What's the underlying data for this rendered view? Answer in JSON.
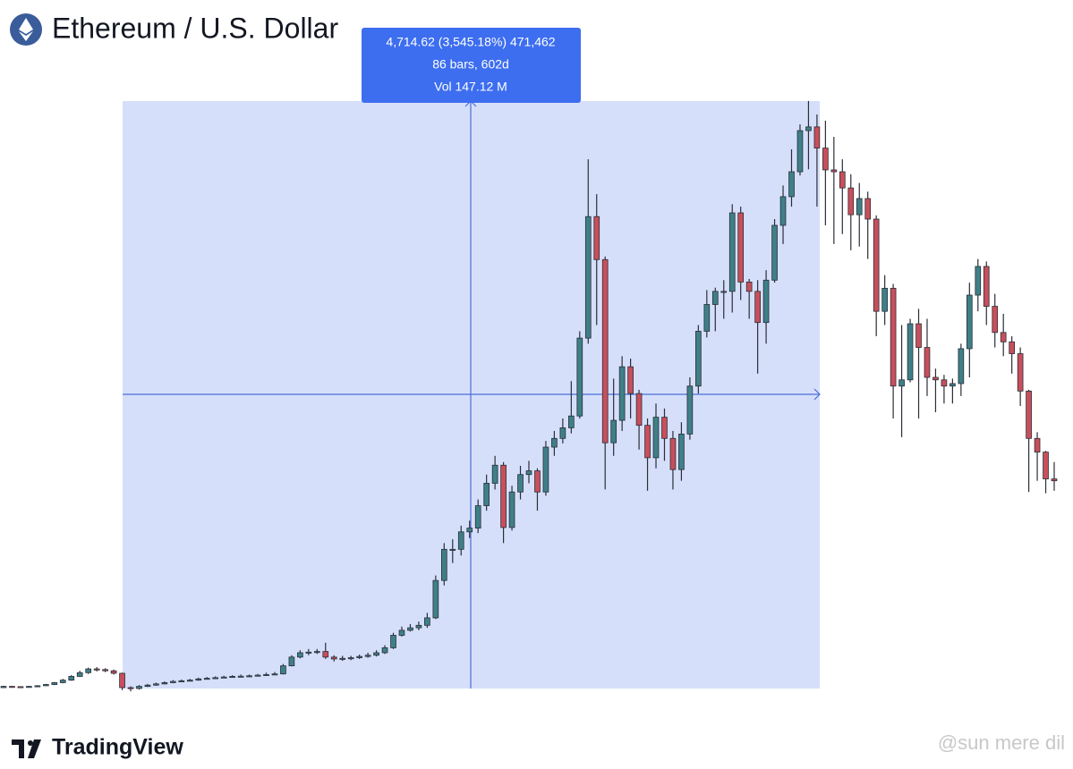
{
  "chart_data": {
    "type": "candlestick",
    "title": "Ethereum / U.S. Dollar",
    "measure": {
      "line1": "4,714.62 (3,545.18%) 471,462",
      "line2": "86 bars, 602d",
      "line3": "Vol 147.12 M"
    },
    "brand": "TradingView",
    "watermark": "@sun mere dil",
    "up_color": "#3f8088",
    "down_color": "#c84f5b",
    "ylim": [
      0,
      5400
    ],
    "open": [
      140,
      150,
      148,
      145,
      150,
      155,
      165,
      180,
      200,
      230,
      260,
      290,
      285,
      275,
      255,
      140,
      133,
      150,
      160,
      170,
      180,
      190,
      195,
      200,
      210,
      215,
      220,
      225,
      230,
      232,
      235,
      240,
      245,
      250,
      315,
      385,
      420,
      425,
      430,
      385,
      370,
      375,
      380,
      390,
      400,
      420,
      460,
      560,
      600,
      620,
      640,
      700,
      1000,
      1250,
      1250,
      1390,
      1420,
      1600,
      1780,
      1925,
      1425,
      1710,
      1850,
      1880,
      1710,
      2070,
      2140,
      2225,
      2320,
      2945,
      3920,
      3575,
      2105,
      2285,
      2715,
      2500,
      2245,
      1985,
      2310,
      2140,
      1890,
      2175,
      2560,
      3000,
      3215,
      3320,
      3320,
      3950,
      3395,
      3320,
      3070,
      3410,
      3850,
      4080,
      4280,
      4610,
      4640,
      4470,
      4295,
      4280,
      4150,
      3935,
      4065,
      3900,
      3160,
      3345,
      2560,
      2610,
      3060,
      2870,
      2630,
      2610,
      2560,
      2580,
      2860,
      3290,
      3520,
      3200,
      2990,
      2915,
      2820,
      2520,
      2140,
      2030,
      1815
    ],
    "high": [
      155,
      153,
      150,
      153,
      160,
      170,
      185,
      210,
      240,
      275,
      300,
      305,
      295,
      285,
      260,
      150,
      160,
      170,
      180,
      190,
      200,
      205,
      210,
      220,
      225,
      230,
      235,
      240,
      245,
      245,
      250,
      260,
      265,
      330,
      400,
      440,
      450,
      450,
      500,
      400,
      395,
      395,
      405,
      420,
      440,
      480,
      580,
      630,
      650,
      670,
      740,
      1040,
      1300,
      1330,
      1440,
      1480,
      1650,
      1850,
      2000,
      1950,
      1760,
      1920,
      1960,
      1900,
      2120,
      2200,
      2300,
      2600,
      3000,
      4380,
      4100,
      3600,
      2620,
      2800,
      2780,
      2530,
      2300,
      2420,
      2380,
      2200,
      2270,
      2630,
      3050,
      3330,
      3350,
      3410,
      4020,
      4000,
      3420,
      3410,
      3490,
      3900,
      4170,
      4460,
      4660,
      4848,
      4740,
      4690,
      4560,
      4380,
      4260,
      4190,
      4120,
      3930,
      3450,
      3380,
      3050,
      3100,
      3180,
      3100,
      2700,
      2650,
      2620,
      2900,
      3390,
      3580,
      3560,
      3300,
      3140,
      2960,
      2870,
      2530,
      2190,
      2040,
      1950
    ],
    "low": [
      138,
      144,
      141,
      142,
      147,
      152,
      160,
      175,
      195,
      225,
      250,
      270,
      265,
      245,
      120,
      110,
      125,
      145,
      155,
      165,
      175,
      185,
      190,
      195,
      205,
      210,
      215,
      220,
      222,
      225,
      230,
      235,
      240,
      245,
      310,
      375,
      400,
      410,
      370,
      350,
      355,
      360,
      370,
      380,
      390,
      410,
      450,
      550,
      590,
      600,
      620,
      690,
      960,
      1140,
      1200,
      1340,
      1380,
      1560,
      1730,
      1300,
      1400,
      1650,
      1780,
      1560,
      1680,
      2000,
      2100,
      2180,
      2300,
      2900,
      3050,
      1730,
      2000,
      2200,
      2300,
      2050,
      1720,
      1900,
      1960,
      1730,
      1800,
      2130,
      2500,
      2950,
      3000,
      3100,
      3150,
      3250,
      3100,
      2660,
      2900,
      3390,
      3700,
      4000,
      4250,
      4300,
      4000,
      3850,
      3700,
      3780,
      3650,
      3680,
      3580,
      2960,
      3050,
      2300,
      2150,
      2590,
      2300,
      2480,
      2350,
      2420,
      2420,
      2480,
      2630,
      3160,
      3050,
      2870,
      2800,
      2660,
      2400,
      1710,
      1800,
      1700,
      1720
    ],
    "close": [
      150,
      148,
      145,
      150,
      155,
      165,
      180,
      200,
      230,
      260,
      290,
      285,
      275,
      255,
      140,
      133,
      150,
      160,
      170,
      180,
      190,
      195,
      200,
      210,
      215,
      220,
      225,
      230,
      232,
      235,
      240,
      245,
      250,
      315,
      385,
      420,
      425,
      430,
      385,
      370,
      375,
      380,
      390,
      400,
      420,
      460,
      560,
      600,
      620,
      640,
      700,
      1000,
      1250,
      1250,
      1390,
      1420,
      1600,
      1780,
      1925,
      1425,
      1710,
      1850,
      1880,
      1710,
      2070,
      2140,
      2225,
      2320,
      2945,
      3920,
      3575,
      2105,
      2285,
      2715,
      2500,
      2245,
      1985,
      2310,
      2140,
      1890,
      2175,
      2560,
      3000,
      3215,
      3320,
      3320,
      3950,
      3395,
      3320,
      3070,
      3410,
      3850,
      4080,
      4280,
      4610,
      4640,
      4470,
      4295,
      4280,
      4150,
      3935,
      4065,
      3900,
      3160,
      3345,
      2560,
      2610,
      3060,
      2870,
      2630,
      2610,
      2560,
      2580,
      2860,
      3290,
      3520,
      3200,
      2990,
      2915,
      2820,
      2520,
      2140,
      2030,
      1815,
      1800
    ]
  }
}
